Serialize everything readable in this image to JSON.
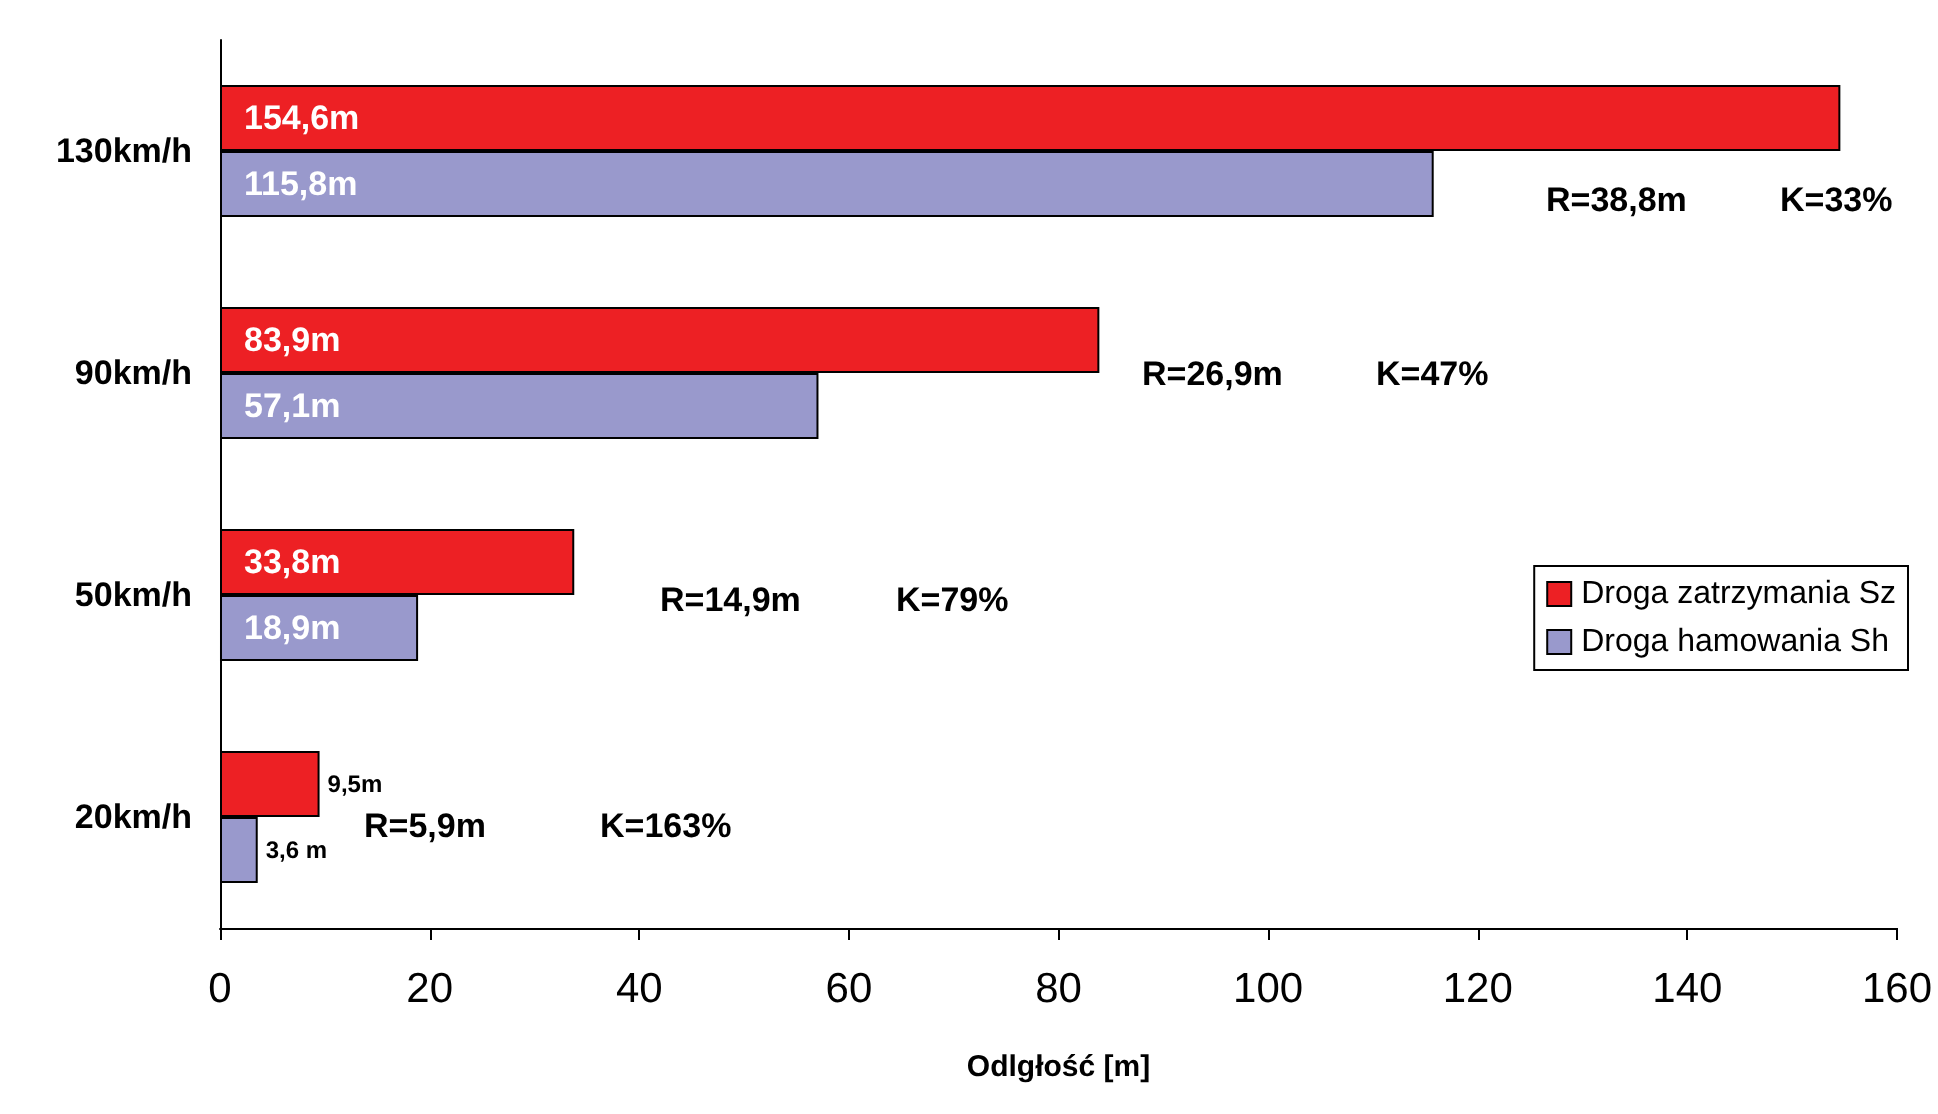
{
  "chart_data": {
    "type": "bar",
    "orientation": "horizontal",
    "xlabel": "Odlgłość [m]",
    "categories": [
      "130km/h",
      "90km/h",
      "50km/h",
      "20km/h"
    ],
    "series": [
      {
        "name": "Droga zatrzymania Sz",
        "color": "#ed2024",
        "values": [
          154.6,
          83.9,
          33.8,
          9.5
        ],
        "value_labels": [
          "154,6m",
          "83,9m",
          "33,8m",
          "9,5m"
        ]
      },
      {
        "name": "Droga hamowania Sh",
        "color": "#9999cc",
        "values": [
          115.8,
          57.1,
          18.9,
          3.6
        ],
        "value_labels": [
          "115,8m",
          "57,1m",
          "18,9m",
          "3,6 m"
        ]
      }
    ],
    "xlim": [
      0,
      160
    ],
    "xticks": [
      0,
      20,
      40,
      60,
      80,
      100,
      120,
      140,
      160
    ],
    "grid": false,
    "legend": "right",
    "annotations": [
      "R=38,8m",
      "K=33%",
      "R=26,9m",
      "K=47%",
      "R=14,9m",
      "K=79%",
      "R=5,9m",
      "K=163%"
    ]
  }
}
